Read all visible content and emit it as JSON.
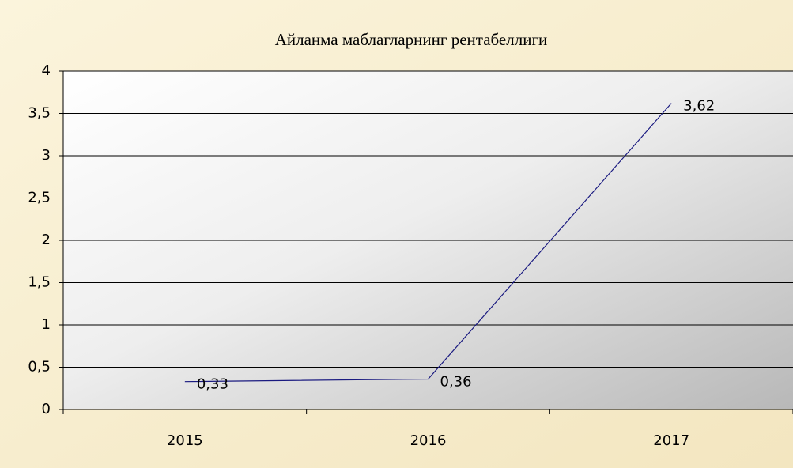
{
  "chart_data": {
    "type": "line",
    "title": "Айланма маблагларнинг рентабеллиги",
    "categories": [
      "2015",
      "2016",
      "2017"
    ],
    "values": [
      0.33,
      0.36,
      3.62
    ],
    "value_labels": [
      "0,33",
      "0,36",
      "3,62"
    ],
    "color": "#1a1a80",
    "ylim": [
      0,
      4
    ],
    "yticks": [
      0,
      {
        "value": 0.5,
        "label": "0,5"
      },
      1,
      {
        "value": 1.5,
        "label": "1,5"
      },
      2,
      {
        "value": 2.5,
        "label": "2,5"
      },
      3,
      {
        "value": 3.5,
        "label": "3,5"
      },
      4
    ],
    "grid": true
  }
}
